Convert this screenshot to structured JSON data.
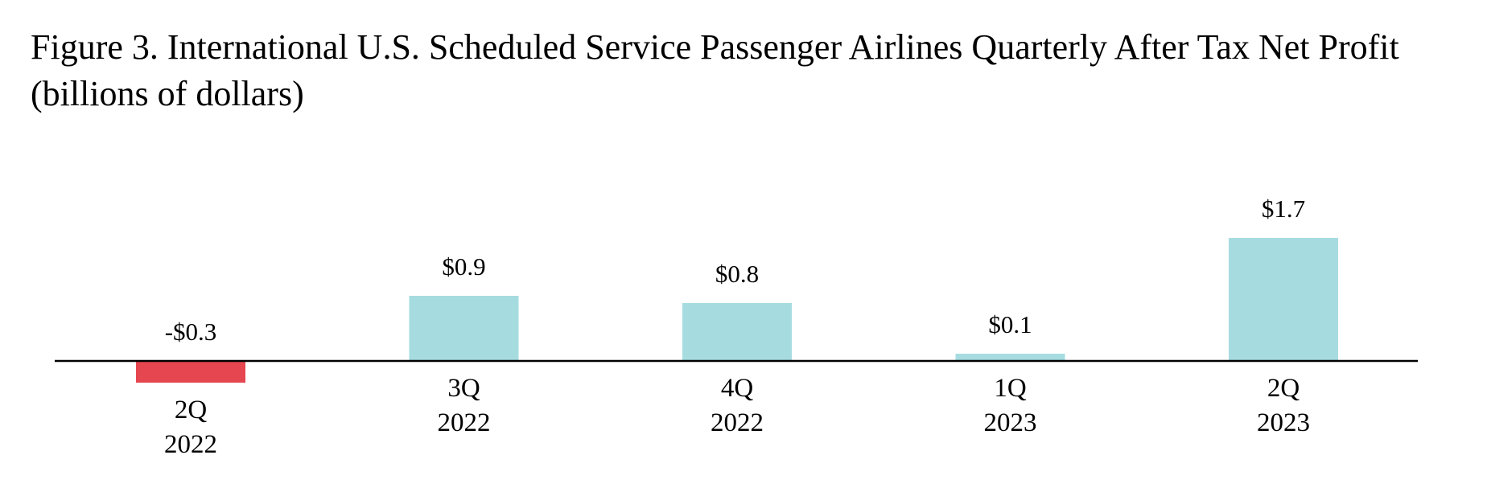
{
  "chart_data": {
    "type": "bar",
    "title": "Figure 3. International U.S. Scheduled Service Passenger Airlines Quarterly After Tax Net Profit",
    "subtitle": "(billions of dollars)",
    "categories": [
      [
        "2Q",
        "2022"
      ],
      [
        "3Q",
        "2022"
      ],
      [
        "4Q",
        "2022"
      ],
      [
        "1Q",
        "2023"
      ],
      [
        "2Q",
        "2023"
      ]
    ],
    "values": [
      -0.3,
      0.9,
      0.8,
      0.1,
      1.7
    ],
    "data_labels": [
      "-$0.3",
      "$0.9",
      "$0.8",
      "$0.1",
      "$1.7"
    ],
    "xlabel": "",
    "ylabel": "",
    "ylim": [
      -0.3,
      1.7
    ],
    "grid": false,
    "legend": "none",
    "colors": {
      "positive": "#A6DCE0",
      "negative": "#E5464F",
      "axis": "#000000"
    }
  }
}
